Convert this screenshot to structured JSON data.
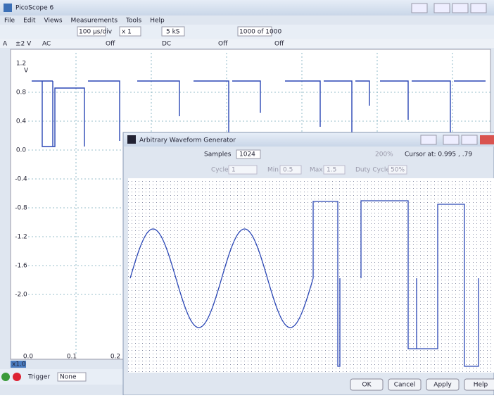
{
  "main_window": {
    "title": "PicoScope 6",
    "menu": [
      "File",
      "Edit",
      "Views",
      "Measurements",
      "Tools",
      "Help"
    ],
    "toolbar": {
      "timebase": "100 µs/div",
      "zoom": "x 1",
      "samples": "5 kS",
      "buffer": "1000 of 1000"
    },
    "channel_bar": {
      "channel": "A",
      "range": "±2 V",
      "coupling": "AC",
      "states": [
        "Off",
        "DC",
        "Off",
        "Off"
      ]
    },
    "y_axis": {
      "unit": "V",
      "labels": [
        "1.2",
        "0.8",
        "0.4",
        "0.0",
        "-0.4",
        "-0.8",
        "-1.2",
        "-1.6",
        "-2.0"
      ]
    },
    "x_axis": {
      "labels": [
        "0.0",
        "0.1",
        "0.2"
      ]
    },
    "status": {
      "zoom": "x1.0",
      "trigger": "Trigger",
      "trigger_mode": "None"
    }
  },
  "awg_window": {
    "title": "Arbitrary Waveform Generator",
    "samples_label": "Samples",
    "samples": "1024",
    "zoom": "200%",
    "cursor": "Cursor at: 0.995 , .79",
    "cycles_label": "Cycles",
    "cycles": "1",
    "min_label": "Min",
    "min": "0.5",
    "max_label": "Max",
    "max": "1.5",
    "duty_label": "Duty Cycle",
    "duty": "50%",
    "buttons": [
      "OK",
      "Cancel",
      "Apply",
      "Help"
    ]
  }
}
